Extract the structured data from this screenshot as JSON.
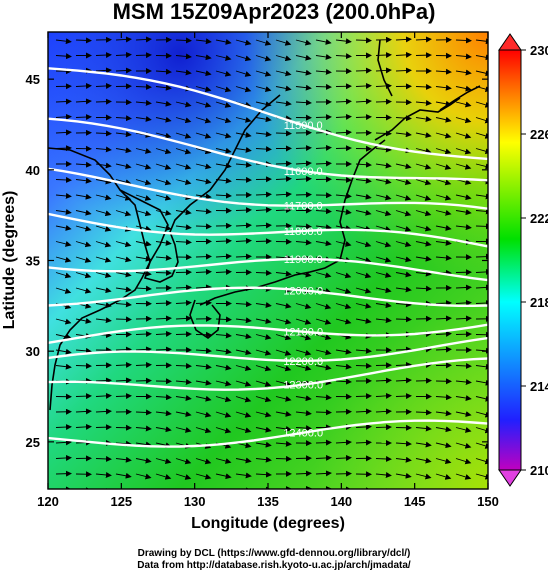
{
  "title": "MSM 15Z09Apr2023 (200.0hPa)",
  "xaxis": {
    "label": "Longitude (degrees)",
    "range": [
      120,
      150
    ],
    "ticks": [
      "120",
      "125",
      "130",
      "135",
      "140",
      "145",
      "150"
    ]
  },
  "yaxis": {
    "label": "Latitude  (degrees)",
    "range": [
      22.4,
      47.6
    ],
    "ticks": [
      "25",
      "30",
      "35",
      "40",
      "45"
    ]
  },
  "colorbar": {
    "range": [
      210,
      230
    ],
    "ticks": [
      "210",
      "214",
      "218",
      "222",
      "226",
      "230"
    ],
    "colors": [
      "#c000c0",
      "#2020ff",
      "#00ffff",
      "#00e000",
      "#ffff00",
      "#ff6000",
      "#ff0000"
    ]
  },
  "contours": [
    {
      "label": "11500.0",
      "lat_west": 45.6,
      "lat_east": 40.6
    },
    {
      "label": "11600.0",
      "lat_west": 42.4,
      "lat_east": 39.0
    },
    {
      "label": "11700.0",
      "lat_west": 39.6,
      "lat_east": 37.4
    },
    {
      "label": "11800.0",
      "lat_west": 37.5,
      "lat_east": 35.7
    },
    {
      "label": "11900.0",
      "lat_west": 35.0,
      "lat_east": 34.3
    },
    {
      "label": "12000.0",
      "lat_west": 33.0,
      "lat_east": 33.0
    },
    {
      "label": "12100.0",
      "lat_west": 30.6,
      "lat_east": 31.6
    },
    {
      "label": "12200.0",
      "lat_west": 29.3,
      "lat_east": 30.4
    },
    {
      "label": "12300.0",
      "lat_west": 27.8,
      "lat_east": 29.1
    },
    {
      "label": "12400.0",
      "lat_west": 25.0,
      "lat_east": 25.8
    }
  ],
  "credits": {
    "line1": "Drawing by DCL (https://www.gfd-dennou.org/library/dcl/)",
    "line2": "Data from http://database.rish.kyoto-u.ac.jp/arch/jmadata/"
  }
}
